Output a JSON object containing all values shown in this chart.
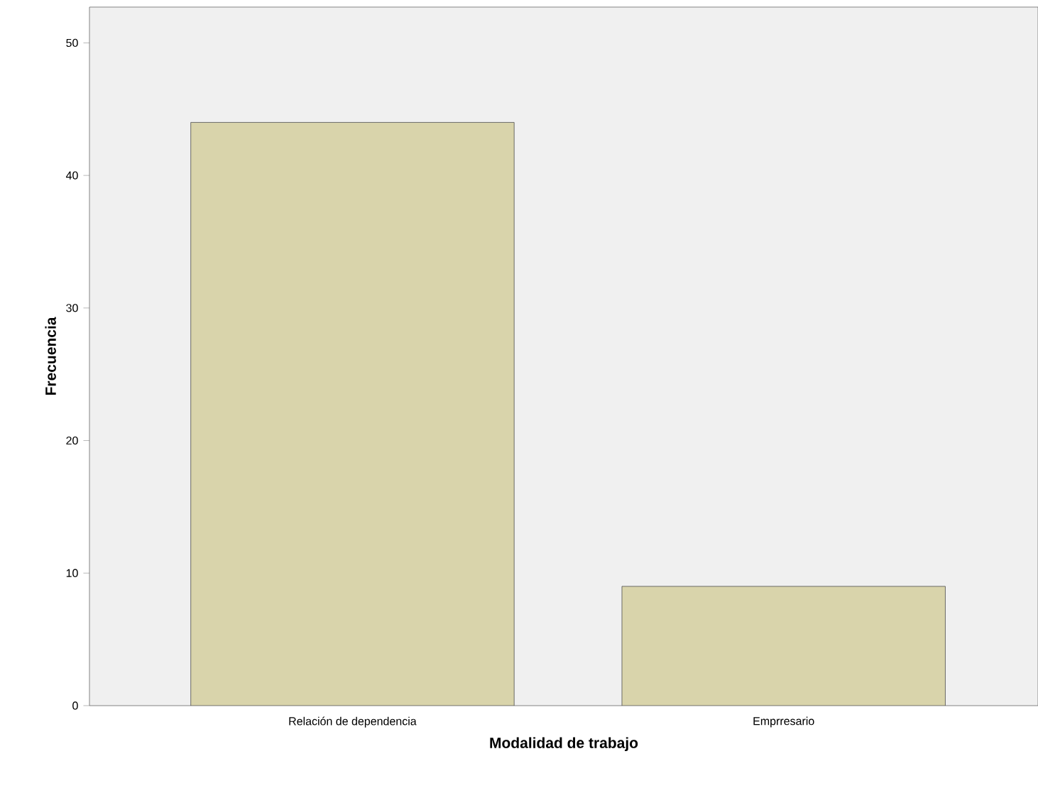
{
  "chart_data": {
    "type": "bar",
    "xlabel": "Modalidad de trabajo",
    "ylabel": "Frecuencia",
    "categories": [
      "Relación de dependencia",
      "Emprresario"
    ],
    "values": [
      44,
      9
    ],
    "color": "#d9d4ab",
    "ylim": [
      0,
      52.7
    ],
    "yticks": [
      0,
      10,
      20,
      30,
      40,
      50
    ],
    "grid": false
  }
}
